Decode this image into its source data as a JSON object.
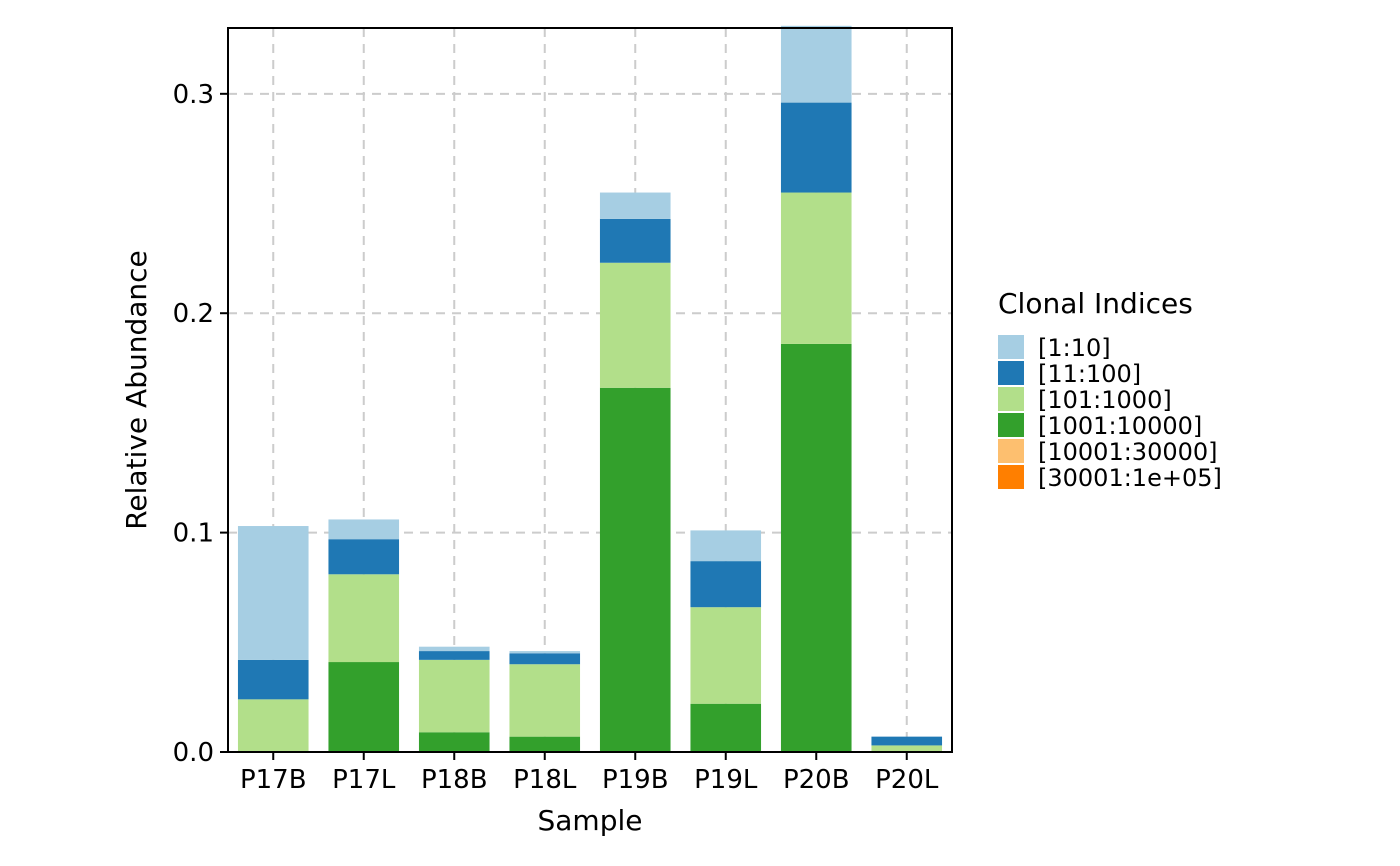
{
  "chart_data": {
    "type": "bar",
    "stacked": true,
    "xlabel": "Sample",
    "ylabel": "Relative Abundance",
    "ylim": [
      0,
      0.33
    ],
    "yticks": [
      0.0,
      0.1,
      0.2,
      0.3
    ],
    "ytick_labels": [
      "0.0",
      "0.1",
      "0.2",
      "0.3"
    ],
    "grid": true,
    "legend": {
      "title": "Clonal Indices",
      "placement": "right"
    },
    "categories": [
      "P17B",
      "P17L",
      "P18B",
      "P18L",
      "P19B",
      "P19L",
      "P20B",
      "P20L"
    ],
    "series": [
      {
        "name": "[30001:1e+05]",
        "color": "#FF7F00",
        "values": [
          0,
          0,
          0,
          0,
          0,
          0,
          0,
          0
        ]
      },
      {
        "name": "[10001:30000]",
        "color": "#FDBF6F",
        "values": [
          0,
          0,
          0,
          0,
          0,
          0,
          0,
          0
        ]
      },
      {
        "name": "[1001:10000]",
        "color": "#33A02C",
        "values": [
          0.0,
          0.041,
          0.009,
          0.007,
          0.166,
          0.022,
          0.186,
          0.0
        ]
      },
      {
        "name": "[101:1000]",
        "color": "#B2DF8A",
        "values": [
          0.024,
          0.04,
          0.033,
          0.033,
          0.057,
          0.044,
          0.069,
          0.003
        ]
      },
      {
        "name": "[11:100]",
        "color": "#1F78B4",
        "values": [
          0.018,
          0.016,
          0.004,
          0.005,
          0.02,
          0.021,
          0.041,
          0.004
        ]
      },
      {
        "name": "[1:10]",
        "color": "#A6CEE3",
        "values": [
          0.061,
          0.009,
          0.002,
          0.001,
          0.012,
          0.014,
          0.035,
          0.0
        ]
      }
    ],
    "legend_order": [
      "[1:10]",
      "[11:100]",
      "[101:1000]",
      "[1001:10000]",
      "[10001:30000]",
      "[30001:1e+05]"
    ]
  }
}
